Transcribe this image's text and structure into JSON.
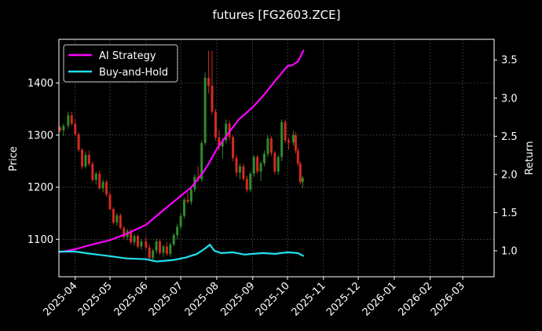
{
  "chart_data": {
    "type": "line",
    "title": "futures [FG2603.ZCE]",
    "ylabel_left": "Price",
    "ylabel_right": "Return",
    "xlim": [
      "2025-03-18",
      "2026-03-28"
    ],
    "ylim_left": [
      1028,
      1484
    ],
    "ylim_right": [
      0.66,
      3.77
    ],
    "x_ticks": [
      "2025-04",
      "2025-05",
      "2025-06",
      "2025-07",
      "2025-08",
      "2025-09",
      "2025-10",
      "2025-11",
      "2025-12",
      "2026-01",
      "2026-02",
      "2026-03"
    ],
    "x_tick_dates": [
      "2025-04-01",
      "2025-05-01",
      "2025-06-01",
      "2025-07-01",
      "2025-08-01",
      "2025-09-01",
      "2025-10-01",
      "2025-11-01",
      "2025-12-01",
      "2026-01-01",
      "2026-02-01",
      "2026-03-01"
    ],
    "y_ticks_left": [
      1100,
      1200,
      1300,
      1400
    ],
    "y_ticks_right": [
      "1.0",
      "1.5",
      "2.0",
      "2.5",
      "3.0",
      "3.5"
    ],
    "y_tick_values_right": [
      1.0,
      1.5,
      2.0,
      2.5,
      3.0,
      3.5
    ],
    "grid": true,
    "legend_position": "top-left",
    "up_color": "#2e8b2e",
    "down_color": "#d42a1e",
    "series": [
      {
        "name": "AI Strategy",
        "color": "#ff00ff",
        "axis": "right",
        "x": [
          "2025-03-18",
          "2025-04-01",
          "2025-04-15",
          "2025-05-01",
          "2025-05-15",
          "2025-06-01",
          "2025-06-15",
          "2025-07-01",
          "2025-07-10",
          "2025-07-20",
          "2025-07-25",
          "2025-08-01",
          "2025-08-10",
          "2025-08-20",
          "2025-09-01",
          "2025-09-10",
          "2025-09-20",
          "2025-10-01",
          "2025-10-05",
          "2025-10-10",
          "2025-10-15"
        ],
        "values": [
          0.98,
          1.02,
          1.08,
          1.14,
          1.22,
          1.34,
          1.52,
          1.72,
          1.83,
          2.02,
          2.14,
          2.33,
          2.52,
          2.72,
          2.88,
          3.03,
          3.22,
          3.42,
          3.43,
          3.48,
          3.63
        ]
      },
      {
        "name": "Buy-and-Hold",
        "color": "#22e0f0",
        "axis": "right",
        "x": [
          "2025-03-18",
          "2025-04-01",
          "2025-04-15",
          "2025-05-01",
          "2025-05-15",
          "2025-06-01",
          "2025-06-10",
          "2025-06-25",
          "2025-07-05",
          "2025-07-15",
          "2025-07-22",
          "2025-07-26",
          "2025-07-30",
          "2025-08-05",
          "2025-08-15",
          "2025-08-25",
          "2025-09-01",
          "2025-09-10",
          "2025-09-20",
          "2025-10-01",
          "2025-10-10",
          "2025-10-15"
        ],
        "values": [
          0.99,
          0.99,
          0.96,
          0.93,
          0.9,
          0.89,
          0.86,
          0.88,
          0.91,
          0.96,
          1.03,
          1.08,
          1.0,
          0.97,
          0.98,
          0.95,
          0.96,
          0.97,
          0.96,
          0.98,
          0.97,
          0.93
        ]
      }
    ],
    "candles": [
      [
        "2025-03-19",
        1315,
        1318,
        1306,
        1309
      ],
      [
        "2025-03-22",
        1309,
        1322,
        1298,
        1318
      ],
      [
        "2025-03-26",
        1318,
        1345,
        1312,
        1338
      ],
      [
        "2025-03-29",
        1338,
        1345,
        1318,
        1322
      ],
      [
        "2025-04-01",
        1322,
        1330,
        1298,
        1302
      ],
      [
        "2025-04-04",
        1302,
        1305,
        1268,
        1272
      ],
      [
        "2025-04-07",
        1272,
        1275,
        1235,
        1240
      ],
      [
        "2025-04-10",
        1240,
        1268,
        1236,
        1262
      ],
      [
        "2025-04-13",
        1262,
        1270,
        1240,
        1245
      ],
      [
        "2025-04-16",
        1245,
        1250,
        1210,
        1214
      ],
      [
        "2025-04-19",
        1214,
        1230,
        1205,
        1226
      ],
      [
        "2025-04-22",
        1226,
        1232,
        1195,
        1198
      ],
      [
        "2025-04-25",
        1198,
        1215,
        1190,
        1210
      ],
      [
        "2025-04-28",
        1210,
        1214,
        1182,
        1186
      ],
      [
        "2025-05-01",
        1186,
        1190,
        1155,
        1158
      ],
      [
        "2025-05-04",
        1158,
        1162,
        1128,
        1132
      ],
      [
        "2025-05-07",
        1132,
        1150,
        1126,
        1146
      ],
      [
        "2025-05-10",
        1146,
        1150,
        1118,
        1122
      ],
      [
        "2025-05-13",
        1122,
        1125,
        1100,
        1104
      ],
      [
        "2025-05-16",
        1104,
        1120,
        1098,
        1116
      ],
      [
        "2025-05-19",
        1116,
        1120,
        1090,
        1094
      ],
      [
        "2025-05-22",
        1094,
        1110,
        1088,
        1106
      ],
      [
        "2025-05-25",
        1106,
        1110,
        1082,
        1086
      ],
      [
        "2025-05-28",
        1086,
        1100,
        1080,
        1096
      ],
      [
        "2025-06-01",
        1096,
        1105,
        1080,
        1084
      ],
      [
        "2025-06-04",
        1084,
        1090,
        1060,
        1064
      ],
      [
        "2025-06-07",
        1064,
        1082,
        1056,
        1078
      ],
      [
        "2025-06-10",
        1078,
        1100,
        1072,
        1096
      ],
      [
        "2025-06-13",
        1096,
        1100,
        1070,
        1074
      ],
      [
        "2025-06-16",
        1074,
        1090,
        1066,
        1086
      ],
      [
        "2025-06-19",
        1086,
        1095,
        1068,
        1072
      ],
      [
        "2025-06-22",
        1072,
        1094,
        1066,
        1090
      ],
      [
        "2025-06-25",
        1090,
        1112,
        1086,
        1108
      ],
      [
        "2025-06-28",
        1108,
        1130,
        1100,
        1124
      ],
      [
        "2025-07-01",
        1124,
        1150,
        1118,
        1145
      ],
      [
        "2025-07-04",
        1145,
        1180,
        1140,
        1176
      ],
      [
        "2025-07-07",
        1176,
        1190,
        1168,
        1172
      ],
      [
        "2025-07-10",
        1172,
        1200,
        1166,
        1196
      ],
      [
        "2025-07-13",
        1196,
        1225,
        1190,
        1220
      ],
      [
        "2025-07-16",
        1220,
        1240,
        1210,
        1215
      ],
      [
        "2025-07-19",
        1215,
        1290,
        1210,
        1285
      ],
      [
        "2025-07-22",
        1285,
        1420,
        1280,
        1410
      ],
      [
        "2025-07-25",
        1410,
        1462,
        1380,
        1395
      ],
      [
        "2025-07-28",
        1395,
        1462,
        1340,
        1345
      ],
      [
        "2025-07-31",
        1345,
        1350,
        1290,
        1296
      ],
      [
        "2025-08-03",
        1296,
        1310,
        1270,
        1278
      ],
      [
        "2025-08-06",
        1278,
        1295,
        1255,
        1290
      ],
      [
        "2025-08-09",
        1290,
        1330,
        1284,
        1322
      ],
      [
        "2025-08-12",
        1322,
        1328,
        1290,
        1296
      ],
      [
        "2025-08-15",
        1296,
        1300,
        1250,
        1256
      ],
      [
        "2025-08-18",
        1256,
        1262,
        1220,
        1228
      ],
      [
        "2025-08-21",
        1228,
        1245,
        1215,
        1240
      ],
      [
        "2025-08-24",
        1240,
        1245,
        1212,
        1216
      ],
      [
        "2025-08-27",
        1216,
        1222,
        1190,
        1195
      ],
      [
        "2025-08-30",
        1195,
        1230,
        1190,
        1226
      ],
      [
        "2025-09-02",
        1226,
        1262,
        1220,
        1258
      ],
      [
        "2025-09-05",
        1258,
        1262,
        1225,
        1230
      ],
      [
        "2025-09-08",
        1230,
        1250,
        1212,
        1246
      ],
      [
        "2025-09-11",
        1246,
        1270,
        1240,
        1264
      ],
      [
        "2025-09-14",
        1264,
        1300,
        1258,
        1294
      ],
      [
        "2025-09-17",
        1294,
        1298,
        1260,
        1266
      ],
      [
        "2025-09-20",
        1266,
        1270,
        1225,
        1230
      ],
      [
        "2025-09-23",
        1230,
        1262,
        1224,
        1258
      ],
      [
        "2025-09-26",
        1258,
        1330,
        1250,
        1325
      ],
      [
        "2025-09-29",
        1325,
        1330,
        1285,
        1290
      ],
      [
        "2025-10-02",
        1290,
        1295,
        1272,
        1286
      ],
      [
        "2025-10-06",
        1286,
        1308,
        1280,
        1300
      ],
      [
        "2025-10-08",
        1300,
        1305,
        1265,
        1270
      ],
      [
        "2025-10-10",
        1270,
        1276,
        1240,
        1245
      ],
      [
        "2025-10-12",
        1245,
        1250,
        1205,
        1210
      ],
      [
        "2025-10-14",
        1210,
        1222,
        1198,
        1218
      ]
    ]
  }
}
